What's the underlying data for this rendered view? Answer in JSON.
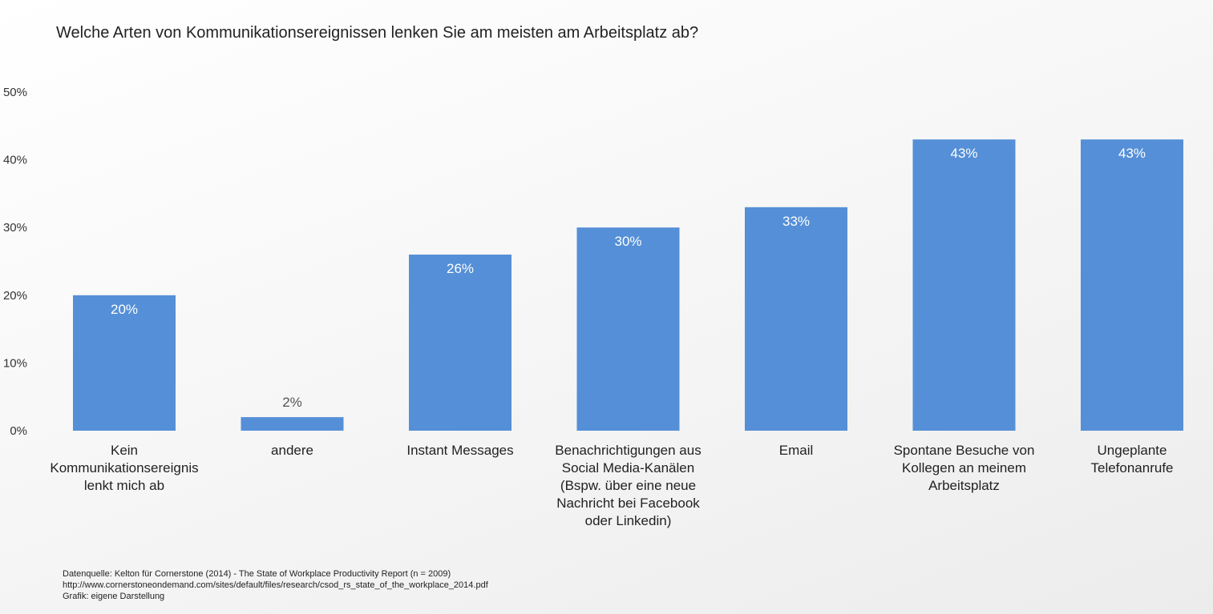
{
  "chart_data": {
    "type": "bar",
    "title": "Welche Arten von Kommunikationsereignissen lenken Sie am meisten am Arbeitsplatz ab?",
    "categories": [
      [
        "Kein",
        "Kommunikationsereignis",
        "lenkt mich ab"
      ],
      [
        "andere"
      ],
      [
        "Instant Messages"
      ],
      [
        "Benachrichtigungen aus",
        "Social Media-Kanälen",
        "(Bspw. über eine neue",
        "Nachricht bei Facebook",
        "oder Linkedin)"
      ],
      [
        "Email"
      ],
      [
        "Spontane Besuche von",
        "Kollegen an meinem",
        "Arbeitsplatz"
      ],
      [
        "Ungeplante",
        "Telefonanrufe"
      ]
    ],
    "values": [
      20,
      2,
      26,
      30,
      33,
      43,
      43
    ],
    "value_labels": [
      "20%",
      "2%",
      "26%",
      "30%",
      "33%",
      "43%",
      "43%"
    ],
    "yticks": [
      0,
      10,
      20,
      30,
      40,
      50
    ],
    "ytick_labels": [
      "0%",
      "10%",
      "20%",
      "30%",
      "40%",
      "50%"
    ],
    "ylim": [
      0,
      50
    ],
    "grid": false,
    "legend": "none",
    "bar_color": "#558fd7",
    "label_inside_color": "#ffffff",
    "label_outside_color": "#555555"
  },
  "footnote": {
    "line1": "Datenquelle: Kelton für Cornerstone (2014) - The State of Workplace Productivity Report (n = 2009)",
    "line2": "http://www.cornerstoneondemand.com/sites/default/files/research/csod_rs_state_of_the_workplace_2014.pdf",
    "line3": "Grafik: eigene Darstellung"
  }
}
